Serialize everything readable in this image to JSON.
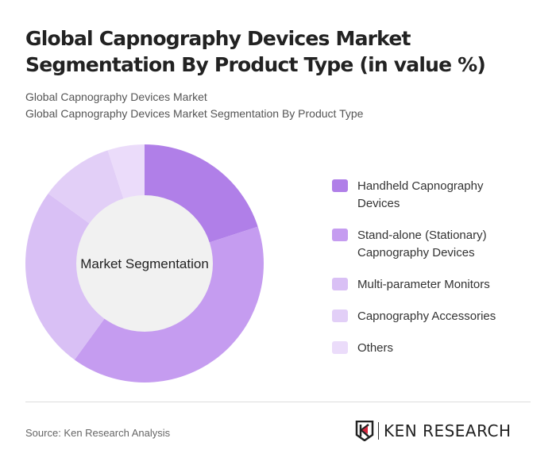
{
  "title": "Global Capnography Devices Market Segmentation By Product Type (in value %)",
  "subtitle1": "Global Capnography Devices Market",
  "subtitle2": "Global Capnography Devices Market Segmentation By Product Type",
  "source": "Source: Ken Research Analysis",
  "logo_text": "KEN RESEARCH",
  "chart_data": {
    "type": "pie",
    "donut": true,
    "center_label": "Market Segmentation",
    "legend_position": "right",
    "categories": [
      "Handheld Capnography Devices",
      "Stand-alone (Stationary) Capnography Devices",
      "Multi-parameter Monitors",
      "Capnography Accessories",
      "Others"
    ],
    "values": [
      20,
      40,
      25,
      10,
      5
    ],
    "colors": [
      "#b07fe8",
      "#c59cf0",
      "#d9c0f5",
      "#e2cff7",
      "#ebdcfa"
    ]
  }
}
